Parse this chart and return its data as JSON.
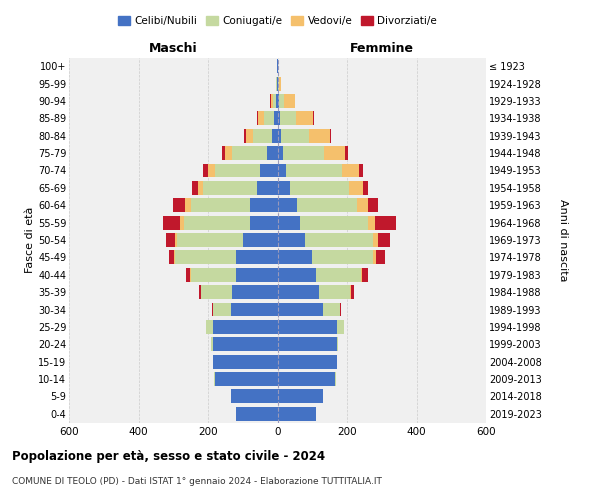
{
  "age_groups": [
    "0-4",
    "5-9",
    "10-14",
    "15-19",
    "20-24",
    "25-29",
    "30-34",
    "35-39",
    "40-44",
    "45-49",
    "50-54",
    "55-59",
    "60-64",
    "65-69",
    "70-74",
    "75-79",
    "80-84",
    "85-89",
    "90-94",
    "95-99",
    "100+"
  ],
  "birth_years": [
    "2019-2023",
    "2014-2018",
    "2009-2013",
    "2004-2008",
    "1999-2003",
    "1994-1998",
    "1989-1993",
    "1984-1988",
    "1979-1983",
    "1974-1978",
    "1969-1973",
    "1964-1968",
    "1959-1963",
    "1954-1958",
    "1949-1953",
    "1944-1948",
    "1939-1943",
    "1934-1938",
    "1929-1933",
    "1924-1928",
    "≤ 1923"
  ],
  "colors": {
    "celibe": "#4472c4",
    "coniugato": "#c5d9a0",
    "vedovo": "#f5c06c",
    "divorziato": "#c0182c"
  },
  "males": {
    "celibe": [
      120,
      135,
      180,
      185,
      185,
      185,
      135,
      130,
      120,
      120,
      100,
      80,
      80,
      60,
      50,
      30,
      15,
      10,
      4,
      2,
      1
    ],
    "coniugato": [
      0,
      0,
      2,
      2,
      5,
      20,
      50,
      90,
      130,
      175,
      190,
      190,
      170,
      155,
      130,
      100,
      55,
      30,
      10,
      2,
      0
    ],
    "vedovo": [
      0,
      0,
      0,
      0,
      0,
      0,
      1,
      1,
      2,
      3,
      5,
      10,
      15,
      15,
      20,
      20,
      20,
      15,
      5,
      1,
      0
    ],
    "divorziato": [
      0,
      0,
      0,
      0,
      0,
      1,
      3,
      5,
      10,
      15,
      25,
      50,
      35,
      15,
      15,
      10,
      5,
      3,
      2,
      0,
      0
    ]
  },
  "females": {
    "nubile": [
      110,
      130,
      165,
      170,
      170,
      170,
      130,
      120,
      110,
      100,
      80,
      65,
      55,
      35,
      25,
      15,
      10,
      8,
      4,
      2,
      1
    ],
    "coniugata": [
      0,
      0,
      2,
      2,
      5,
      20,
      50,
      90,
      130,
      175,
      195,
      195,
      175,
      170,
      160,
      120,
      80,
      45,
      15,
      3,
      0
    ],
    "vedova": [
      0,
      0,
      0,
      0,
      0,
      1,
      1,
      2,
      4,
      8,
      15,
      20,
      30,
      40,
      50,
      60,
      60,
      50,
      30,
      5,
      1
    ],
    "divorziata": [
      0,
      0,
      0,
      0,
      0,
      1,
      3,
      8,
      15,
      25,
      35,
      60,
      30,
      15,
      12,
      8,
      5,
      3,
      2,
      0,
      0
    ]
  },
  "xlim": 600,
  "title": "Popolazione per età, sesso e stato civile - 2024",
  "subtitle": "COMUNE DI TEOLO (PD) - Dati ISTAT 1° gennaio 2024 - Elaborazione TUTTITALIA.IT",
  "ylabel_left": "Fasce di età",
  "ylabel_right": "Anni di nascita",
  "xlabel_maschi": "Maschi",
  "xlabel_femmine": "Femmine",
  "legend_labels": [
    "Celibi/Nubili",
    "Coniugati/e",
    "Vedovi/e",
    "Divorziati/e"
  ],
  "background_color": "#f0f0f0"
}
